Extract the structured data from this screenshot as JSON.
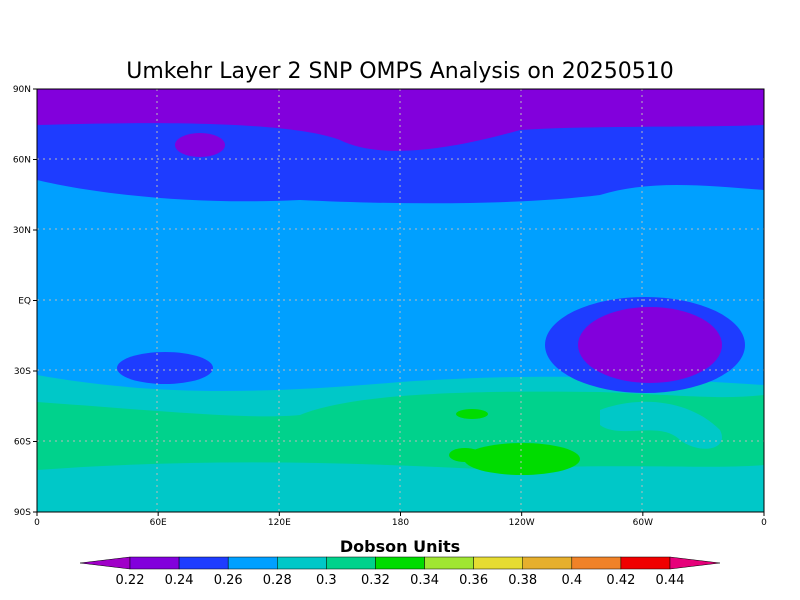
{
  "title": "Umkehr Layer 2 SNP OMPS Analysis on 20250510",
  "lat_labels": [
    "90N",
    "60N",
    "30N",
    "EQ",
    "30S",
    "60S",
    "90S"
  ],
  "lon_labels": [
    "0",
    "60E",
    "120E",
    "180",
    "120W",
    "60W",
    "0"
  ],
  "colorbar": {
    "title": "Dobson Units",
    "levels": [
      0.22,
      0.24,
      0.26,
      0.28,
      0.3,
      0.32,
      0.34,
      0.36,
      0.38,
      0.4,
      0.42,
      0.44
    ],
    "colors": [
      "#a000c8",
      "#8200dc",
      "#1e3cff",
      "#00a0ff",
      "#00c8c8",
      "#00d28c",
      "#00dc00",
      "#a0e632",
      "#e6dc32",
      "#e6af2d",
      "#f08228",
      "#f00000",
      "#e6007a"
    ]
  }
}
